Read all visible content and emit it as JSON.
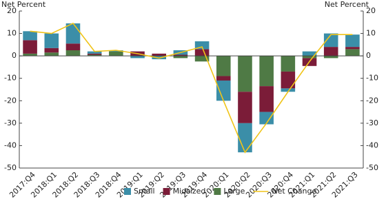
{
  "chart_data": {
    "type": "bar",
    "y_label": "Net Percent",
    "y2_label": "Net Percent",
    "categories": [
      "2017:Q4",
      "2018:Q1",
      "2018:Q2",
      "2018:Q3",
      "2018:Q4",
      "2019:Q1",
      "2019:Q2",
      "2019:Q3",
      "2019:Q4",
      "2020:Q1",
      "2020:Q2",
      "2020:Q3",
      "2020:Q4",
      "2021:Q1",
      "2021:Q2",
      "2021:Q3"
    ],
    "series": [
      {
        "name": "Small",
        "type": "bar",
        "color": "#3b8ea8",
        "values": [
          4,
          6.5,
          9,
          1,
          0.5,
          -1,
          -1.5,
          2,
          3.5,
          -9,
          -13,
          -5.5,
          -1.5,
          2,
          6,
          5.5
        ]
      },
      {
        "name": "Midsized",
        "type": "bar",
        "color": "#7b1c38",
        "values": [
          6,
          2,
          3,
          0.5,
          0,
          2,
          1,
          0.5,
          3,
          -2,
          -14,
          -11.5,
          -7.5,
          -3.5,
          4,
          1
        ]
      },
      {
        "name": "Large",
        "type": "bar",
        "color": "#4f7a45",
        "values": [
          1,
          1.5,
          2.5,
          0.5,
          2,
          0,
          0,
          -1,
          -2.5,
          -9,
          -16,
          -13.5,
          -7,
          -1,
          -1,
          3
        ]
      },
      {
        "name": "Net Change",
        "type": "line",
        "color": "#f0c419",
        "values": [
          11,
          10,
          14.5,
          2,
          2.5,
          1,
          -1,
          1.5,
          4,
          -20,
          -43,
          -30,
          -16,
          -2.5,
          9.5,
          9.5
        ]
      }
    ],
    "ylim": [
      -50,
      20
    ],
    "yticks": [
      20,
      10,
      0,
      -10,
      -20,
      -30,
      -40,
      -50
    ],
    "y2lim": [
      -50,
      20
    ],
    "y2ticks": [
      20,
      10,
      0,
      -10,
      -20,
      -30,
      -40,
      -50
    ]
  }
}
